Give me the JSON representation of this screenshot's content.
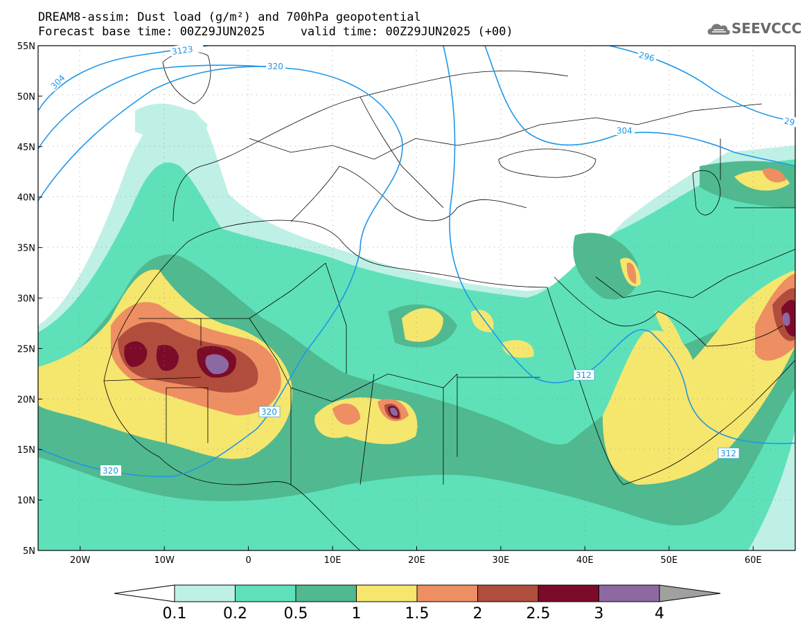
{
  "title": {
    "line1": "DREAM8-assim: Dust load (g/m²) and 700hPa geopotential",
    "line2": "Forecast base time: 00Z29JUN2025     valid time: 00Z29JUN2025 (+00)"
  },
  "logo": {
    "text": "SEEVCCC",
    "icon": "cloud-logo-icon"
  },
  "axes": {
    "lon_labels": [
      "20W",
      "10W",
      "0",
      "10E",
      "20E",
      "30E",
      "40E",
      "50E",
      "60E"
    ],
    "lat_labels": [
      "55N",
      "50N",
      "45N",
      "40N",
      "35N",
      "30N",
      "25N",
      "20N",
      "15N",
      "10N",
      "5N"
    ],
    "lon_range": [
      -25,
      65
    ],
    "lat_range": [
      5,
      55
    ]
  },
  "contour_labels": [
    "304",
    "3123",
    "320",
    "296",
    "304",
    "29",
    "312",
    "320",
    "312",
    "320"
  ],
  "colorbar": {
    "ticks": [
      "0.1",
      "0.2",
      "0.5",
      "1",
      "1.5",
      "2",
      "2.5",
      "3",
      "4"
    ],
    "colors": [
      "#bff0e6",
      "#5ee1b9",
      "#50b990",
      "#f5e66e",
      "#ed8f62",
      "#b04d3d",
      "#7c0a29",
      "#8c69a0",
      "#a0a0a0"
    ]
  },
  "colors": {
    "geopotential_line": "#1e96e6",
    "borders": "#000000",
    "background": "#ffffff"
  }
}
